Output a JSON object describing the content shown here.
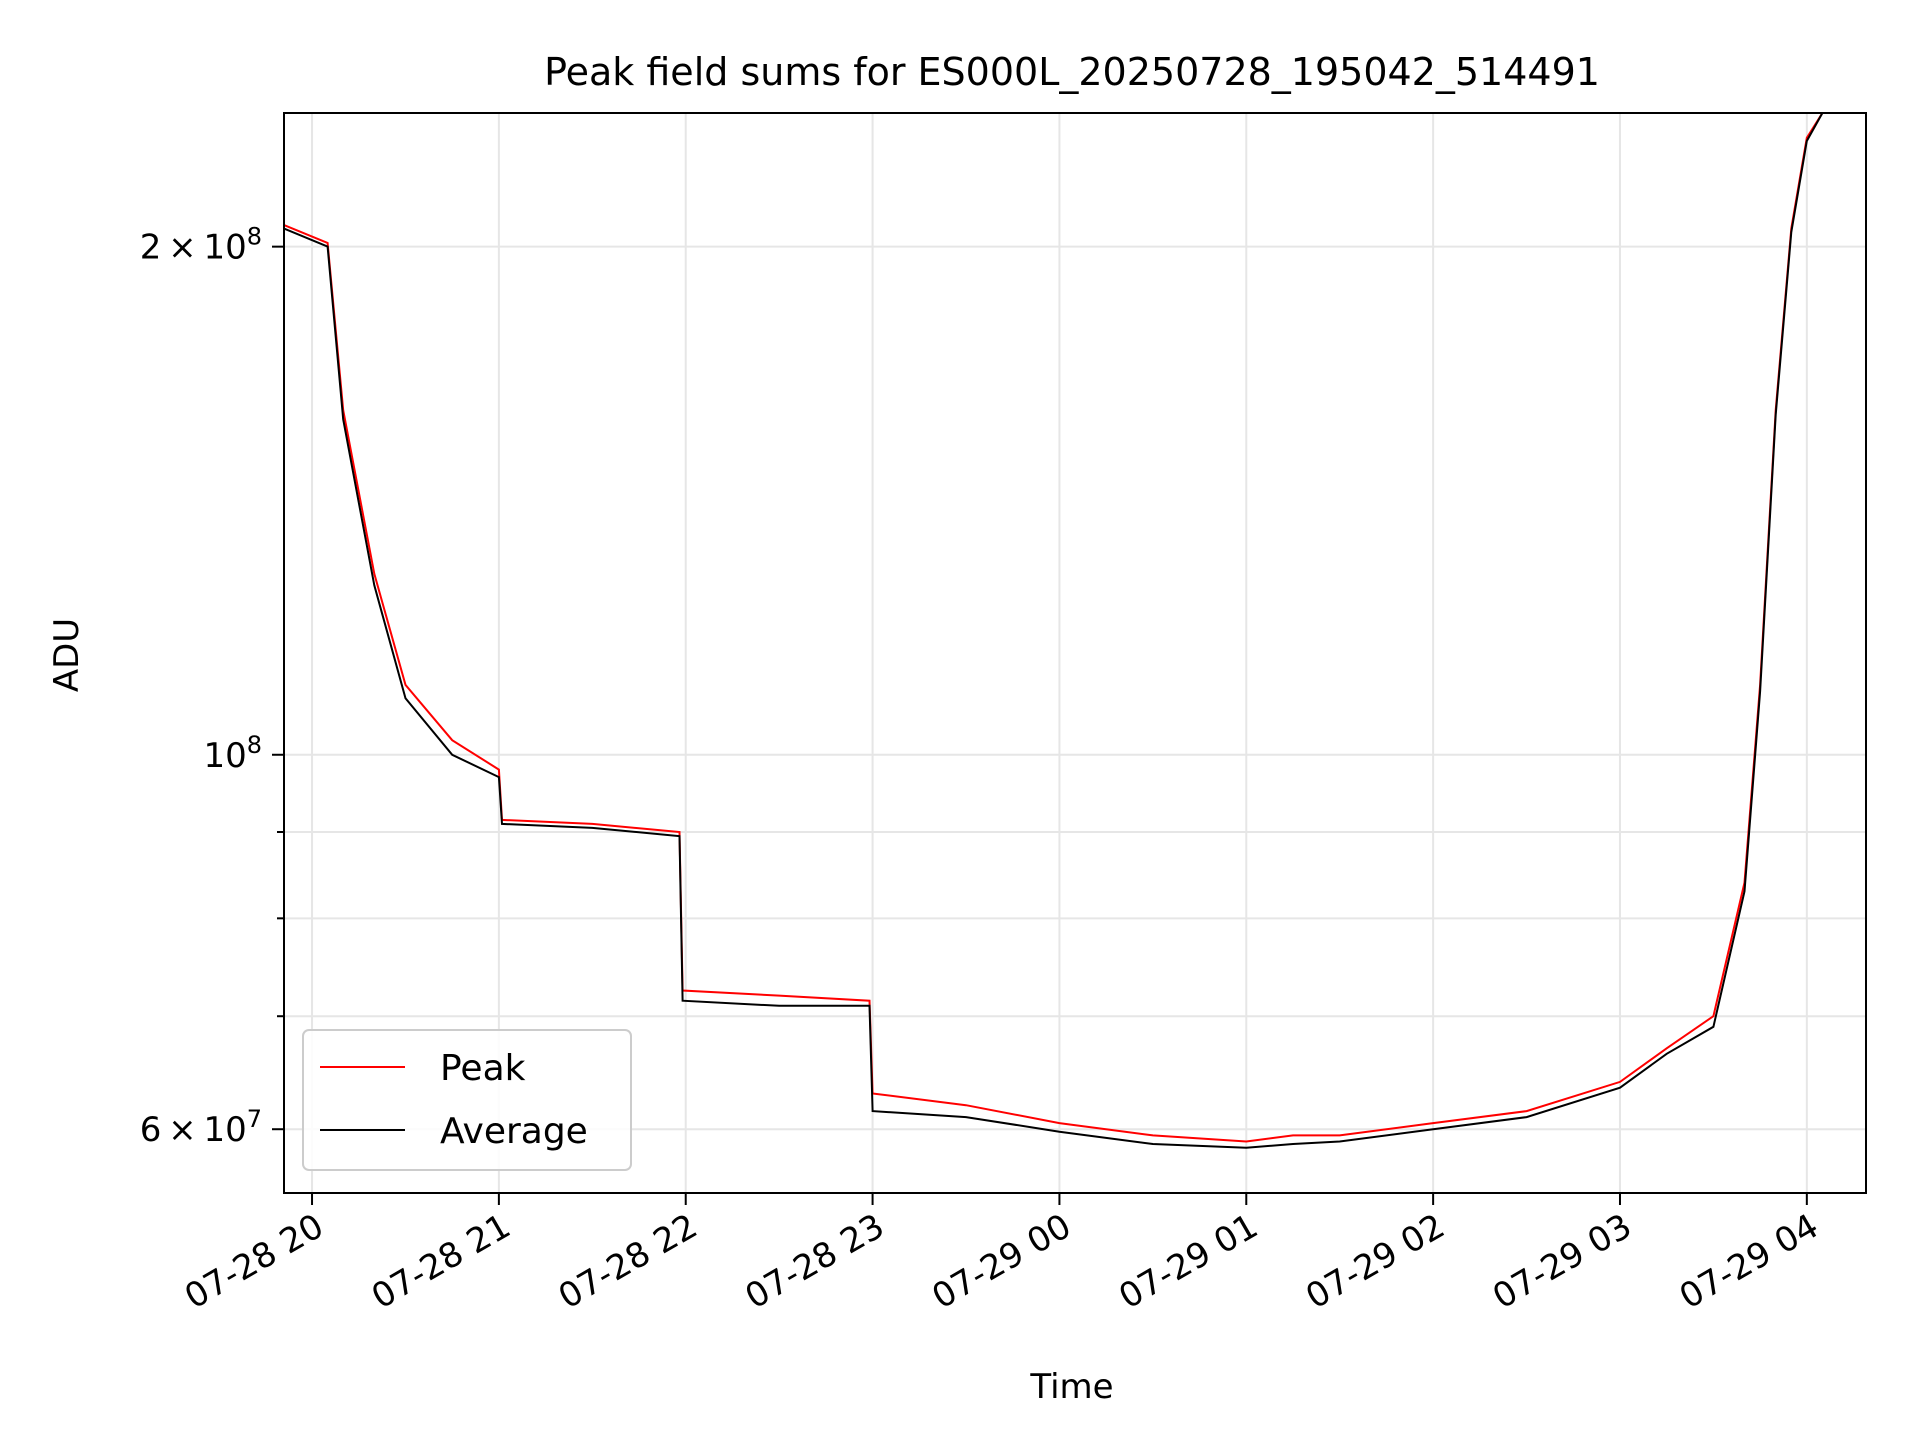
{
  "chart_data": {
    "type": "line",
    "title": "Peak field sums for ES000L_20250728_195042_514491",
    "xlabel": "Time",
    "ylabel": "ADU",
    "y_scale": "log",
    "ylim": [
      55000000,
      240000000
    ],
    "xlim": [
      "2025-07-28 19:51",
      "2025-07-29 04:19"
    ],
    "x_ticks": [
      "07-28 20",
      "07-28 21",
      "07-28 22",
      "07-28 23",
      "07-29 00",
      "07-29 01",
      "07-29 02",
      "07-29 03",
      "07-29 04"
    ],
    "y_major_ticks": [
      {
        "value": 60000000,
        "mantissa": "6",
        "exponent": "7"
      },
      {
        "value": 100000000,
        "mantissa": "",
        "exponent": "8"
      },
      {
        "value": 200000000,
        "mantissa": "2",
        "exponent": "8"
      }
    ],
    "y_minor_ticks": [
      70000000,
      80000000,
      90000000
    ],
    "grid": true,
    "legend_position": "lower-left",
    "colors": {
      "Peak": "#ff0000",
      "Average": "#000000"
    },
    "series": [
      {
        "name": "Peak",
        "x": [
          "2025-07-28 19:51",
          "2025-07-28 20:05",
          "2025-07-28 20:10",
          "2025-07-28 20:20",
          "2025-07-28 20:30",
          "2025-07-28 20:45",
          "2025-07-28 21:00",
          "2025-07-28 21:01",
          "2025-07-28 21:30",
          "2025-07-28 21:58",
          "2025-07-28 21:59",
          "2025-07-28 22:30",
          "2025-07-28 22:59",
          "2025-07-28 23:00",
          "2025-07-28 23:30",
          "2025-07-29 00:00",
          "2025-07-29 00:30",
          "2025-07-29 01:00",
          "2025-07-29 01:15",
          "2025-07-29 01:30",
          "2025-07-29 02:00",
          "2025-07-29 02:30",
          "2025-07-29 03:00",
          "2025-07-29 03:15",
          "2025-07-29 03:30",
          "2025-07-29 03:40",
          "2025-07-29 03:45",
          "2025-07-29 03:50",
          "2025-07-29 03:55",
          "2025-07-29 04:00",
          "2025-07-29 04:05"
        ],
        "values": [
          206000000,
          201000000,
          160000000,
          128000000,
          110000000,
          102000000,
          98000000,
          91500000,
          91000000,
          90000000,
          72500000,
          72000000,
          71500000,
          63000000,
          62000000,
          60500000,
          59500000,
          59000000,
          59500000,
          59500000,
          60500000,
          61500000,
          64000000,
          67000000,
          70000000,
          84000000,
          110000000,
          160000000,
          205000000,
          232000000,
          240000000
        ]
      },
      {
        "name": "Average",
        "x": [
          "2025-07-28 19:51",
          "2025-07-28 20:05",
          "2025-07-28 20:10",
          "2025-07-28 20:20",
          "2025-07-28 20:30",
          "2025-07-28 20:45",
          "2025-07-28 21:00",
          "2025-07-28 21:01",
          "2025-07-28 21:30",
          "2025-07-28 21:58",
          "2025-07-28 21:59",
          "2025-07-28 22:30",
          "2025-07-28 22:59",
          "2025-07-28 23:00",
          "2025-07-28 23:30",
          "2025-07-29 00:00",
          "2025-07-29 00:30",
          "2025-07-29 01:00",
          "2025-07-29 01:15",
          "2025-07-29 01:30",
          "2025-07-29 02:00",
          "2025-07-29 02:30",
          "2025-07-29 03:00",
          "2025-07-29 03:15",
          "2025-07-29 03:30",
          "2025-07-29 03:40",
          "2025-07-29 03:45",
          "2025-07-29 03:50",
          "2025-07-29 03:55",
          "2025-07-29 04:00",
          "2025-07-29 04:05"
        ],
        "values": [
          205000000,
          200000000,
          158000000,
          126000000,
          108000000,
          100000000,
          97000000,
          91000000,
          90500000,
          89500000,
          71500000,
          71000000,
          71000000,
          61500000,
          61000000,
          59800000,
          58800000,
          58500000,
          58800000,
          59000000,
          60000000,
          61000000,
          63500000,
          66500000,
          69000000,
          83000000,
          109000000,
          159000000,
          204000000,
          231000000,
          240000000
        ]
      }
    ]
  }
}
